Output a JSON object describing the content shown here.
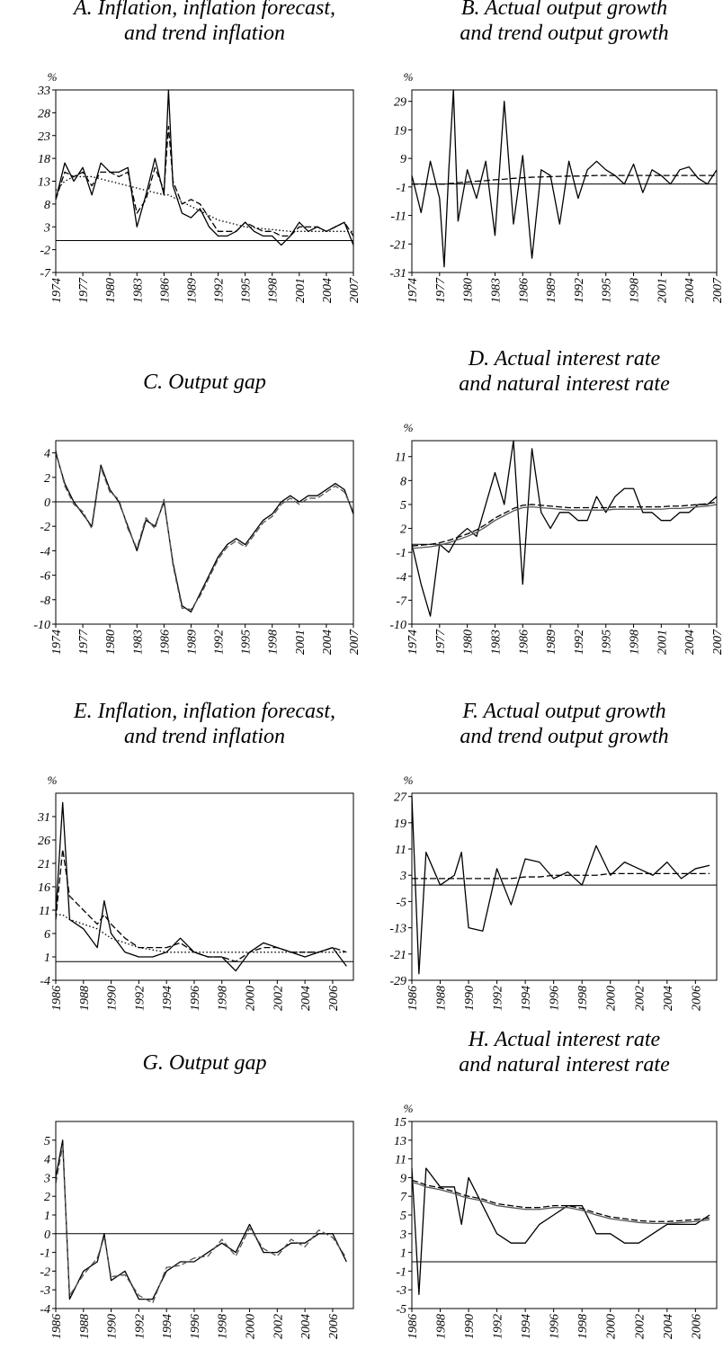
{
  "chart_data": [
    {
      "type": "line",
      "title": [
        "A. Inflation, inflation forecast,",
        "and trend inflation"
      ],
      "ylabel": "%",
      "zero_line": true,
      "x": [
        1974,
        1975,
        1976,
        1977,
        1978,
        1979,
        1980,
        1981,
        1982,
        1983,
        1984,
        1985,
        1986,
        1986.5,
        1987,
        1988,
        1989,
        1990,
        1991,
        1992,
        1993,
        1994,
        1995,
        1996,
        1997,
        1998,
        1999,
        2000,
        2001,
        2002,
        2003,
        2004,
        2005,
        2006,
        2007
      ],
      "xlim": [
        1974,
        2007
      ],
      "xticks": [
        1974,
        1977,
        1980,
        1983,
        1986,
        1989,
        1992,
        1995,
        1998,
        2001,
        2004,
        2007
      ],
      "ylim": [
        -7,
        33
      ],
      "yticks": [
        -7,
        -2,
        3,
        8,
        13,
        18,
        23,
        28,
        33
      ],
      "series": [
        {
          "color": "#000000",
          "dash": "solid",
          "values": [
            9,
            17,
            13,
            16,
            10,
            17,
            15,
            15,
            16,
            3,
            10,
            18,
            10,
            33,
            12,
            6,
            5,
            7,
            3,
            1,
            1,
            2,
            4,
            2,
            1,
            1,
            -1,
            1,
            4,
            2,
            3,
            2,
            3,
            4,
            -1
          ]
        },
        {
          "color": "#000000",
          "dash": "dashed",
          "values": [
            9,
            15,
            14,
            15,
            12,
            15,
            15,
            14,
            15,
            6,
            9,
            16,
            11,
            25,
            13,
            8,
            9,
            8,
            5,
            2,
            2,
            2,
            4,
            3,
            2,
            2,
            1,
            1,
            3,
            3,
            3,
            2,
            3,
            4,
            1
          ]
        },
        {
          "color": "#000000",
          "dash": "dotted",
          "values": [
            11,
            13,
            14,
            14,
            14,
            13.5,
            13,
            12.5,
            12,
            11.5,
            11,
            10.5,
            10,
            10,
            9.5,
            8.5,
            7.5,
            6.5,
            5.5,
            4.5,
            4,
            3.5,
            3,
            2.8,
            2.6,
            2.4,
            2.2,
            2,
            2,
            2,
            2,
            2,
            2,
            2,
            2
          ]
        }
      ]
    },
    {
      "type": "line",
      "title": [
        "B. Actual output growth",
        "and trend output growth"
      ],
      "ylabel": "%",
      "zero_line": true,
      "x": [
        1974,
        1975,
        1976,
        1977,
        1977.5,
        1978,
        1978.5,
        1979,
        1980,
        1981,
        1982,
        1983,
        1984,
        1985,
        1986,
        1987,
        1988,
        1989,
        1990,
        1991,
        1992,
        1993,
        1994,
        1995,
        1996,
        1997,
        1998,
        1999,
        2000,
        2001,
        2002,
        2003,
        2004,
        2005,
        2006,
        2007
      ],
      "xlim": [
        1974,
        2007
      ],
      "xticks": [
        1974,
        1977,
        1980,
        1983,
        1986,
        1989,
        1992,
        1995,
        1998,
        2001,
        2004,
        2007
      ],
      "ylim": [
        -31,
        33
      ],
      "yticks": [
        -31,
        -21,
        -11,
        -1,
        9,
        19,
        29
      ],
      "series": [
        {
          "color": "#000000",
          "dash": "solid",
          "values": [
            3,
            -10,
            8,
            -5,
            -29,
            5,
            33,
            -13,
            5,
            -5,
            8,
            -18,
            29,
            -14,
            10,
            -26,
            5,
            3,
            -14,
            8,
            -5,
            5,
            8,
            5,
            3,
            0,
            7,
            -3,
            5,
            3,
            0,
            5,
            6,
            2,
            0,
            5
          ]
        },
        {
          "color": "#000000",
          "dash": "dashed",
          "values": [
            0,
            0,
            0,
            0,
            0,
            0.2,
            0.3,
            0.5,
            0.7,
            1,
            1.2,
            1.5,
            1.7,
            2,
            2.2,
            2.4,
            2.5,
            2.6,
            2.7,
            2.8,
            2.8,
            2.9,
            3,
            3,
            3,
            3,
            3,
            3,
            3,
            3,
            3,
            3,
            3,
            3,
            3,
            3
          ]
        }
      ]
    },
    {
      "type": "line",
      "title": [
        "C. Output gap"
      ],
      "zero_line": true,
      "x": [
        1974,
        1975,
        1976,
        1977,
        1978,
        1979,
        1980,
        1981,
        1982,
        1983,
        1984,
        1985,
        1986,
        1987,
        1988,
        1989,
        1990,
        1991,
        1992,
        1993,
        1994,
        1995,
        1996,
        1997,
        1998,
        1999,
        2000,
        2001,
        2002,
        2003,
        2004,
        2005,
        2006,
        2007
      ],
      "xlim": [
        1974,
        2007
      ],
      "xticks": [
        1974,
        1977,
        1980,
        1983,
        1986,
        1989,
        1992,
        1995,
        1998,
        2001,
        2004,
        2007
      ],
      "ylim": [
        -10,
        5
      ],
      "yticks": [
        -10,
        -8,
        -6,
        -4,
        -2,
        0,
        2,
        4
      ],
      "series": [
        {
          "color": "#000000",
          "dash": "solid",
          "values": [
            4,
            1.5,
            0,
            -1,
            -2,
            3,
            1,
            0,
            -2,
            -4,
            -1.5,
            -2,
            0,
            -5,
            -8.5,
            -9,
            -7.5,
            -6,
            -4.5,
            -3.5,
            -3,
            -3.5,
            -2.5,
            -1.5,
            -1,
            0,
            0.5,
            0,
            0.5,
            0.5,
            1,
            1.5,
            1,
            -1
          ]
        },
        {
          "color": "#555555",
          "dash": "dashed",
          "values": [
            4.2,
            1.3,
            -0.2,
            -0.8,
            -2.2,
            2.8,
            0.8,
            0.2,
            -2.2,
            -3.8,
            -1.3,
            -2.2,
            0.2,
            -5.2,
            -8.7,
            -8.8,
            -7.7,
            -6.2,
            -4.7,
            -3.7,
            -3.2,
            -3.7,
            -2.7,
            -1.7,
            -1.2,
            -0.2,
            0.3,
            -0.2,
            0.3,
            0.3,
            0.8,
            1.3,
            0.8,
            -0.8
          ]
        }
      ]
    },
    {
      "type": "line",
      "title": [
        "D. Actual interest rate",
        "and natural interest rate"
      ],
      "ylabel": "%",
      "zero_line": true,
      "x": [
        1974,
        1975,
        1976,
        1977,
        1978,
        1979,
        1980,
        1981,
        1982,
        1983,
        1984,
        1985,
        1986,
        1987,
        1988,
        1989,
        1990,
        1991,
        1992,
        1993,
        1994,
        1995,
        1996,
        1997,
        1998,
        1999,
        2000,
        2001,
        2002,
        2003,
        2004,
        2005,
        2006,
        2007
      ],
      "xlim": [
        1974,
        2007
      ],
      "xticks": [
        1974,
        1977,
        1980,
        1983,
        1986,
        1989,
        1992,
        1995,
        1998,
        2001,
        2004,
        2007
      ],
      "ylim": [
        -10,
        13
      ],
      "yticks": [
        -10,
        -7,
        -4,
        -1,
        2,
        5,
        8,
        11
      ],
      "series": [
        {
          "color": "#000000",
          "dash": "solid",
          "values": [
            0,
            -5,
            -9,
            0,
            -1,
            1,
            2,
            1,
            5,
            9,
            5,
            13,
            -5,
            12,
            4,
            2,
            4,
            4,
            3,
            3,
            6,
            4,
            6,
            7,
            7,
            4,
            4,
            3,
            3,
            4,
            4,
            5,
            5,
            6
          ]
        },
        {
          "color": "#555555",
          "dash": "solid",
          "values": [
            -0.5,
            -0.4,
            -0.3,
            -0.1,
            0.2,
            0.6,
            1,
            1.5,
            2.2,
            3,
            3.6,
            4.2,
            4.6,
            4.7,
            4.6,
            4.5,
            4.4,
            4.3,
            4.3,
            4.3,
            4.3,
            4.3,
            4.4,
            4.4,
            4.4,
            4.4,
            4.4,
            4.4,
            4.5,
            4.5,
            4.6,
            4.7,
            4.8,
            5
          ]
        },
        {
          "color": "#000000",
          "dash": "dashed",
          "values": [
            -0.2,
            -0.1,
            0,
            0.2,
            0.5,
            0.9,
            1.3,
            1.8,
            2.5,
            3.3,
            3.9,
            4.5,
            4.9,
            5,
            4.9,
            4.8,
            4.7,
            4.6,
            4.6,
            4.6,
            4.6,
            4.6,
            4.7,
            4.7,
            4.7,
            4.7,
            4.7,
            4.7,
            4.8,
            4.8,
            4.9,
            5,
            5.1,
            5.3
          ]
        }
      ]
    },
    {
      "type": "line",
      "title": [
        "E. Inflation, inflation forecast,",
        "and trend inflation"
      ],
      "ylabel": "%",
      "zero_line": true,
      "x": [
        1986,
        1986.5,
        1987,
        1988,
        1989,
        1989.5,
        1990,
        1991,
        1992,
        1993,
        1994,
        1995,
        1996,
        1997,
        1998,
        1999,
        2000,
        2001,
        2002,
        2003,
        2004,
        2005,
        2006,
        2007
      ],
      "xlim": [
        1986,
        2007.5
      ],
      "xticks": [
        1986,
        1988,
        1990,
        1992,
        1994,
        1996,
        1998,
        2000,
        2002,
        2004,
        2006
      ],
      "ylim": [
        -4,
        36
      ],
      "yticks": [
        -4,
        1,
        6,
        11,
        16,
        21,
        26,
        31
      ],
      "series": [
        {
          "color": "#000000",
          "dash": "solid",
          "values": [
            10,
            34,
            9,
            7,
            3,
            13,
            6,
            2,
            1,
            1,
            2,
            5,
            2,
            1,
            1,
            -2,
            2,
            4,
            3,
            2,
            1,
            2,
            3,
            -1
          ]
        },
        {
          "color": "#000000",
          "dash": "dashed",
          "values": [
            9,
            24,
            14,
            11,
            8,
            10,
            8,
            5,
            3,
            3,
            3,
            4,
            2,
            1,
            1,
            0,
            2,
            3,
            3,
            2,
            2,
            2,
            3,
            2
          ]
        },
        {
          "color": "#000000",
          "dash": "dotted",
          "values": [
            10,
            10,
            9,
            8,
            7,
            6,
            5,
            4,
            3,
            2.5,
            2,
            2,
            2,
            2,
            2,
            2,
            2,
            2,
            2,
            2,
            2,
            2,
            2,
            2
          ]
        }
      ]
    },
    {
      "type": "line",
      "title": [
        "F. Actual output growth",
        "and trend output growth"
      ],
      "ylabel": "%",
      "zero_line": true,
      "x": [
        1986,
        1986.5,
        1987,
        1988,
        1989,
        1989.5,
        1990,
        1991,
        1992,
        1993,
        1994,
        1995,
        1996,
        1997,
        1998,
        1999,
        2000,
        2001,
        2002,
        2003,
        2004,
        2005,
        2006,
        2007
      ],
      "xlim": [
        1986,
        2007.5
      ],
      "xticks": [
        1986,
        1988,
        1990,
        1992,
        1994,
        1996,
        1998,
        2000,
        2002,
        2004,
        2006
      ],
      "ylim": [
        -29,
        28
      ],
      "yticks": [
        -29,
        -21,
        -13,
        -5,
        3,
        11,
        19,
        27
      ],
      "series": [
        {
          "color": "#000000",
          "dash": "solid",
          "values": [
            27,
            -27,
            10,
            0,
            3,
            10,
            -13,
            -14,
            5,
            -6,
            8,
            7,
            2,
            4,
            0,
            12,
            3,
            7,
            5,
            3,
            7,
            2,
            5,
            6
          ]
        },
        {
          "color": "#000000",
          "dash": "dashed",
          "values": [
            2,
            2,
            2,
            2,
            2,
            2,
            2,
            2,
            2,
            2,
            2.5,
            2.5,
            3,
            3,
            3,
            3,
            3.5,
            3.5,
            3.5,
            3.5,
            3.5,
            3.5,
            3.5,
            3.5
          ]
        }
      ]
    },
    {
      "type": "line",
      "title": [
        "G. Output gap"
      ],
      "zero_line": true,
      "x": [
        1986,
        1986.5,
        1987,
        1988,
        1989,
        1989.5,
        1990,
        1991,
        1992,
        1993,
        1994,
        1995,
        1996,
        1997,
        1998,
        1999,
        2000,
        2001,
        2002,
        2003,
        2004,
        2005,
        2006,
        2007
      ],
      "xlim": [
        1986,
        2007.5
      ],
      "xticks": [
        1986,
        1988,
        1990,
        1992,
        1994,
        1996,
        1998,
        2000,
        2002,
        2004,
        2006
      ],
      "ylim": [
        -4,
        6
      ],
      "yticks": [
        -4,
        -3,
        -2,
        -1,
        0,
        1,
        2,
        3,
        4,
        5
      ],
      "series": [
        {
          "color": "#000000",
          "dash": "solid",
          "values": [
            3,
            5,
            -3.5,
            -2,
            -1.5,
            0,
            -2.5,
            -2,
            -3.5,
            -3.5,
            -2,
            -1.5,
            -1.5,
            -1,
            -0.5,
            -1,
            0.5,
            -1,
            -1,
            -0.5,
            -0.5,
            0,
            0,
            -1.5
          ]
        },
        {
          "color": "#555555",
          "dash": "dashed",
          "values": [
            2.7,
            4.7,
            -3.3,
            -2.2,
            -1.3,
            -0.2,
            -2.3,
            -2.2,
            -3.3,
            -3.7,
            -1.8,
            -1.7,
            -1.3,
            -1.2,
            -0.3,
            -1.2,
            0.3,
            -0.8,
            -1.2,
            -0.3,
            -0.7,
            0.2,
            -0.2,
            -1.3
          ]
        }
      ]
    },
    {
      "type": "line",
      "title": [
        "H. Actual interest rate",
        "and natural interest rate"
      ],
      "ylabel": "%",
      "zero_line": true,
      "x": [
        1986,
        1986.5,
        1987,
        1988,
        1989,
        1989.5,
        1990,
        1991,
        1992,
        1993,
        1994,
        1995,
        1996,
        1997,
        1998,
        1999,
        2000,
        2001,
        2002,
        2003,
        2004,
        2005,
        2006,
        2007
      ],
      "xlim": [
        1986,
        2007.5
      ],
      "xticks": [
        1986,
        1988,
        1990,
        1992,
        1994,
        1996,
        1998,
        2000,
        2002,
        2004,
        2006
      ],
      "ylim": [
        -5,
        15
      ],
      "yticks": [
        -5,
        -3,
        -1,
        1,
        3,
        5,
        7,
        9,
        11,
        13,
        15
      ],
      "series": [
        {
          "color": "#000000",
          "dash": "solid",
          "values": [
            10,
            -3.5,
            10,
            8,
            8,
            4,
            9,
            6,
            3,
            2,
            2,
            4,
            5,
            6,
            6,
            3,
            3,
            2,
            2,
            3,
            4,
            4,
            4,
            5
          ]
        },
        {
          "color": "#555555",
          "dash": "solid",
          "values": [
            8.5,
            8.3,
            8,
            7.7,
            7.3,
            7,
            6.8,
            6.5,
            6,
            5.8,
            5.6,
            5.6,
            5.8,
            5.8,
            5.5,
            5,
            4.6,
            4.4,
            4.2,
            4.1,
            4.1,
            4.2,
            4.3,
            4.5
          ]
        },
        {
          "color": "#000000",
          "dash": "dashed",
          "values": [
            8.7,
            8.5,
            8.2,
            7.9,
            7.5,
            7.2,
            7,
            6.7,
            6.2,
            6,
            5.8,
            5.8,
            6,
            6,
            5.7,
            5.2,
            4.8,
            4.6,
            4.4,
            4.3,
            4.3,
            4.4,
            4.5,
            4.7
          ]
        }
      ]
    }
  ]
}
